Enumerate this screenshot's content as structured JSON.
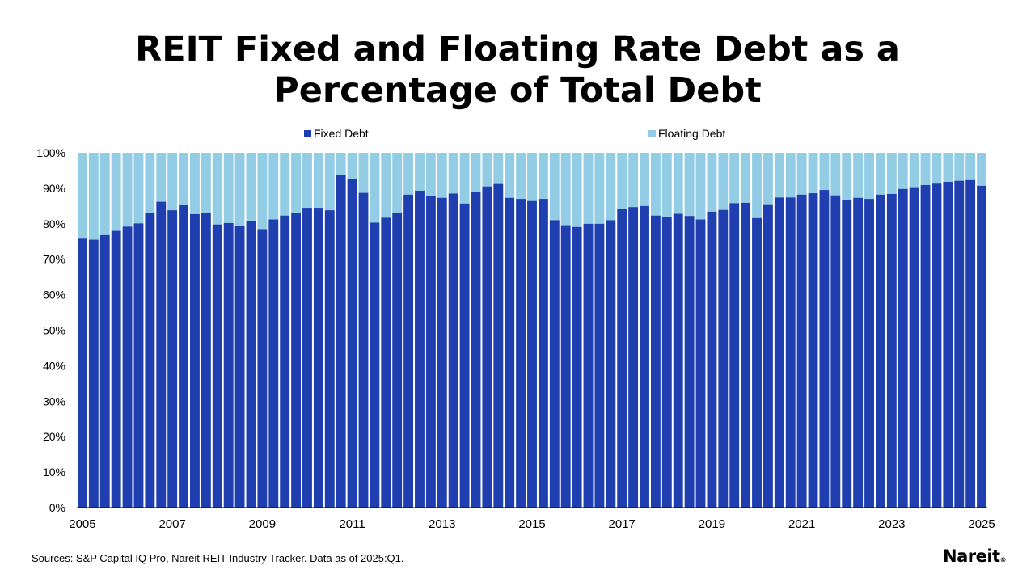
{
  "title_line1": "REIT Fixed and Floating Rate Debt as a",
  "title_line2": "Percentage of Total Debt",
  "sources": "Sources: S&P Capital IQ Pro, Nareit REIT Industry Tracker. Data as of 2025:Q1.",
  "logo_text": "Nareit",
  "logo_mark": "®",
  "chart_data": {
    "type": "bar",
    "stacked": true,
    "title": "REIT Fixed and Floating Rate Debt as a Percentage of Total Debt",
    "xlabel": "",
    "ylabel": "",
    "ylim": [
      0,
      100
    ],
    "yticks": [
      "0%",
      "10%",
      "20%",
      "30%",
      "40%",
      "50%",
      "60%",
      "70%",
      "80%",
      "90%",
      "100%"
    ],
    "xticks": [
      "2005",
      "2007",
      "2009",
      "2011",
      "2013",
      "2015",
      "2017",
      "2019",
      "2021",
      "2023",
      "2025"
    ],
    "legend_position": "top",
    "colors": {
      "fixed": "#1F3FB0",
      "floating": "#93CDE5"
    },
    "categories": [
      "2005:Q1",
      "2005:Q2",
      "2005:Q3",
      "2005:Q4",
      "2006:Q1",
      "2006:Q2",
      "2006:Q3",
      "2006:Q4",
      "2007:Q1",
      "2007:Q2",
      "2007:Q3",
      "2007:Q4",
      "2008:Q1",
      "2008:Q2",
      "2008:Q3",
      "2008:Q4",
      "2009:Q1",
      "2009:Q2",
      "2009:Q3",
      "2009:Q4",
      "2010:Q1",
      "2010:Q2",
      "2010:Q3",
      "2010:Q4",
      "2011:Q1",
      "2011:Q2",
      "2011:Q3",
      "2011:Q4",
      "2012:Q1",
      "2012:Q2",
      "2012:Q3",
      "2012:Q4",
      "2013:Q1",
      "2013:Q2",
      "2013:Q3",
      "2013:Q4",
      "2014:Q1",
      "2014:Q2",
      "2014:Q3",
      "2014:Q4",
      "2015:Q1",
      "2015:Q2",
      "2015:Q3",
      "2015:Q4",
      "2016:Q1",
      "2016:Q2",
      "2016:Q3",
      "2016:Q4",
      "2017:Q1",
      "2017:Q2",
      "2017:Q3",
      "2017:Q4",
      "2018:Q1",
      "2018:Q2",
      "2018:Q3",
      "2018:Q4",
      "2019:Q1",
      "2019:Q2",
      "2019:Q3",
      "2019:Q4",
      "2020:Q1",
      "2020:Q2",
      "2020:Q3",
      "2020:Q4",
      "2021:Q1",
      "2021:Q2",
      "2021:Q3",
      "2021:Q4",
      "2022:Q1",
      "2022:Q2",
      "2022:Q3",
      "2022:Q4",
      "2023:Q1",
      "2023:Q2",
      "2023:Q3",
      "2023:Q4",
      "2024:Q1",
      "2024:Q2",
      "2024:Q3",
      "2024:Q4",
      "2025:Q1"
    ],
    "series": [
      {
        "name": "Fixed Debt",
        "values": [
          75.8,
          75.5,
          76.8,
          78.0,
          79.2,
          80.1,
          83.0,
          86.2,
          83.8,
          85.3,
          82.7,
          83.1,
          79.8,
          80.2,
          79.4,
          80.7,
          78.5,
          81.2,
          82.3,
          83.1,
          84.5,
          84.5,
          83.8,
          93.8,
          92.5,
          88.7,
          80.3,
          81.7,
          83.0,
          88.2,
          89.3,
          87.8,
          87.3,
          88.5,
          85.7,
          88.9,
          90.5,
          91.2,
          87.3,
          87.0,
          86.4,
          87.0,
          81.0,
          79.6,
          79.1,
          80.0,
          80.0,
          81.0,
          84.2,
          84.7,
          85.0,
          82.3,
          81.9,
          82.8,
          82.2,
          81.2,
          83.4,
          83.9,
          85.8,
          85.9,
          81.6,
          85.5,
          87.4,
          87.4,
          88.2,
          88.6,
          89.5,
          88.0,
          86.7,
          87.3,
          87.0,
          88.2,
          88.4,
          89.8,
          90.3,
          90.9,
          91.3,
          91.8,
          92.1,
          92.3,
          90.7
        ]
      },
      {
        "name": "Floating Debt",
        "values": [
          24.2,
          24.5,
          23.2,
          22.0,
          20.8,
          19.9,
          17.0,
          13.8,
          16.2,
          14.7,
          17.3,
          16.9,
          20.2,
          19.8,
          20.6,
          19.3,
          21.5,
          18.8,
          17.7,
          16.9,
          15.5,
          15.5,
          16.2,
          6.2,
          7.5,
          11.3,
          19.7,
          18.3,
          17.0,
          11.8,
          10.7,
          12.2,
          12.7,
          11.5,
          14.3,
          11.1,
          9.5,
          8.8,
          12.7,
          13.0,
          13.6,
          13.0,
          19.0,
          20.4,
          20.9,
          20.0,
          20.0,
          19.0,
          15.8,
          15.3,
          15.0,
          17.7,
          18.1,
          17.2,
          17.8,
          18.8,
          16.6,
          16.1,
          14.2,
          14.1,
          18.4,
          14.5,
          12.6,
          12.6,
          11.8,
          11.4,
          10.5,
          12.0,
          13.3,
          12.7,
          13.0,
          11.8,
          11.6,
          10.2,
          9.7,
          9.1,
          8.7,
          8.2,
          7.9,
          7.7,
          9.3
        ]
      }
    ]
  }
}
